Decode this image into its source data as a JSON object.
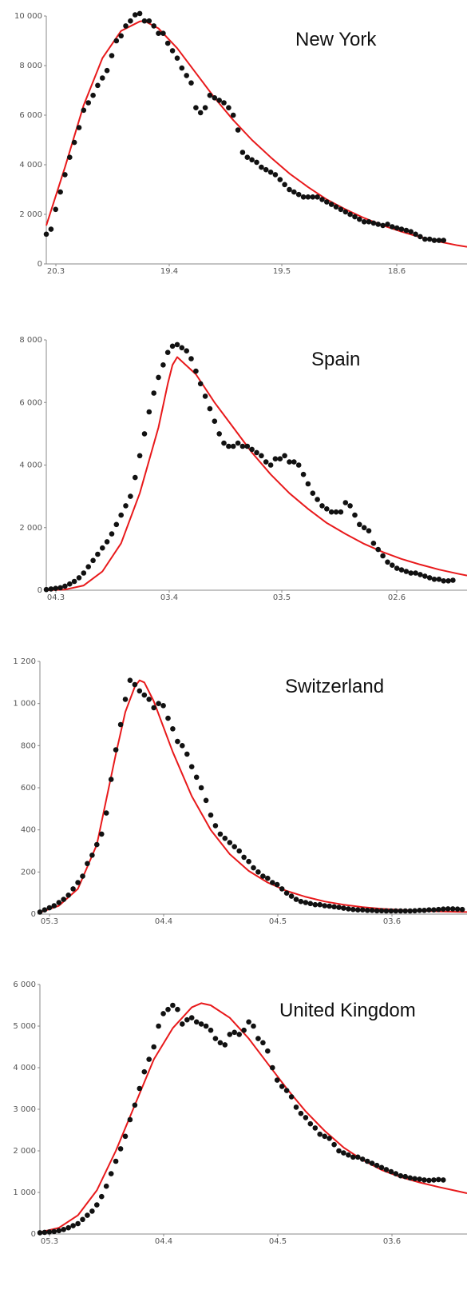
{
  "colors": {
    "fit": "#e8191b",
    "points": "#111111",
    "axis": "#888888",
    "background": "#ffffff"
  },
  "chart_data": [
    {
      "type": "scatter",
      "title": "New York",
      "xlabel": "",
      "ylabel": "",
      "xticks": [
        "20.3",
        "19.4",
        "19.5",
        "18.6"
      ],
      "xlim": [
        0,
        90
      ],
      "ylim": [
        0,
        10000
      ],
      "yticks": [
        0,
        2000,
        4000,
        6000,
        8000,
        10000
      ],
      "ytick_labels": [
        "0",
        "2 000",
        "4 000",
        "6 000",
        "8 000",
        "10 000"
      ],
      "grid": false,
      "series": [
        {
          "kind": "points",
          "x": [
            0,
            1,
            2,
            3,
            4,
            5,
            6,
            7,
            8,
            9,
            10,
            11,
            12,
            13,
            14,
            15,
            16,
            17,
            18,
            19,
            20,
            21,
            22,
            23,
            24,
            25,
            26,
            27,
            28,
            29,
            30,
            31,
            32,
            33,
            34,
            35,
            36,
            37,
            38,
            39,
            40,
            41,
            42,
            43,
            44,
            45,
            46,
            47,
            48,
            49,
            50,
            51,
            52,
            53,
            54,
            55,
            56,
            57,
            58,
            59,
            60,
            61,
            62,
            63,
            64,
            65,
            66,
            67,
            68,
            69,
            70,
            71,
            72,
            73,
            74,
            75,
            76,
            77,
            78,
            79,
            80,
            81,
            82,
            83,
            84,
            85
          ],
          "y": [
            1200,
            1400,
            2200,
            2900,
            3600,
            4300,
            4900,
            5500,
            6200,
            6500,
            6800,
            7200,
            7500,
            7800,
            8400,
            9000,
            9200,
            9600,
            9800,
            10050,
            10100,
            9800,
            9800,
            9600,
            9300,
            9300,
            8900,
            8600,
            8300,
            7900,
            7600,
            7300,
            6300,
            6100,
            6300,
            6800,
            6700,
            6600,
            6500,
            6300,
            6000,
            5400,
            4500,
            4300,
            4200,
            4100,
            3900,
            3800,
            3700,
            3600,
            3400,
            3200,
            3000,
            2900,
            2800,
            2700,
            2700,
            2700,
            2700,
            2600,
            2500,
            2400,
            2300,
            2200,
            2100,
            2000,
            1900,
            1800,
            1700,
            1700,
            1650,
            1600,
            1550,
            1600,
            1500,
            1450,
            1400,
            1350,
            1300,
            1200,
            1100,
            1000,
            1000,
            950,
            950,
            950
          ]
        },
        {
          "kind": "fit",
          "x": [
            0,
            4,
            8,
            12,
            16,
            20,
            21,
            24,
            28,
            32,
            36,
            40,
            44,
            48,
            52,
            56,
            60,
            64,
            68,
            72,
            76,
            80,
            84,
            88,
            90
          ],
          "y": [
            1550,
            3900,
            6400,
            8300,
            9400,
            9780,
            9800,
            9500,
            8700,
            7700,
            6700,
            5800,
            5000,
            4300,
            3650,
            3100,
            2600,
            2200,
            1850,
            1550,
            1300,
            1080,
            900,
            750,
            690
          ]
        }
      ]
    },
    {
      "type": "scatter",
      "title": "Spain",
      "xlabel": "",
      "ylabel": "",
      "xticks": [
        "04.3",
        "03.4",
        "03.5",
        "02.6"
      ],
      "xlim": [
        0,
        90
      ],
      "ylim": [
        0,
        8000
      ],
      "yticks": [
        0,
        2000,
        4000,
        6000,
        8000
      ],
      "ytick_labels": [
        "0",
        "2 000",
        "4 000",
        "6 000",
        "8 000"
      ],
      "grid": false,
      "series": [
        {
          "kind": "points",
          "x": [
            0,
            1,
            2,
            3,
            4,
            5,
            6,
            7,
            8,
            9,
            10,
            11,
            12,
            13,
            14,
            15,
            16,
            17,
            18,
            19,
            20,
            21,
            22,
            23,
            24,
            25,
            26,
            27,
            28,
            29,
            30,
            31,
            32,
            33,
            34,
            35,
            36,
            37,
            38,
            39,
            40,
            41,
            42,
            43,
            44,
            45,
            46,
            47,
            48,
            49,
            50,
            51,
            52,
            53,
            54,
            55,
            56,
            57,
            58,
            59,
            60,
            61,
            62,
            63,
            64,
            65,
            66,
            67,
            68,
            69,
            70,
            71,
            72,
            73,
            74,
            75,
            76,
            77,
            78,
            79,
            80,
            81,
            82,
            83,
            84,
            85,
            86,
            87
          ],
          "y": [
            20,
            40,
            60,
            80,
            130,
            200,
            280,
            400,
            550,
            750,
            950,
            1150,
            1350,
            1550,
            1800,
            2100,
            2400,
            2700,
            3000,
            3600,
            4300,
            5000,
            5700,
            6300,
            6800,
            7200,
            7600,
            7800,
            7850,
            7750,
            7650,
            7400,
            7000,
            6600,
            6200,
            5800,
            5400,
            5000,
            4700,
            4600,
            4600,
            4700,
            4600,
            4600,
            4500,
            4400,
            4300,
            4100,
            4000,
            4200,
            4200,
            4300,
            4100,
            4100,
            4000,
            3700,
            3400,
            3100,
            2900,
            2700,
            2600,
            2500,
            2500,
            2500,
            2800,
            2700,
            2400,
            2100,
            2000,
            1900,
            1500,
            1300,
            1100,
            900,
            800,
            700,
            650,
            600,
            550,
            550,
            500,
            450,
            400,
            350,
            350,
            300,
            300,
            320
          ]
        },
        {
          "kind": "fit",
          "x": [
            0,
            4,
            8,
            12,
            16,
            20,
            24,
            26,
            27,
            28,
            32,
            36,
            40,
            44,
            48,
            52,
            56,
            60,
            64,
            68,
            72,
            76,
            80,
            84,
            88,
            90
          ],
          "y": [
            0,
            20,
            150,
            600,
            1500,
            3100,
            5200,
            6600,
            7200,
            7450,
            6900,
            6000,
            5200,
            4400,
            3700,
            3100,
            2600,
            2150,
            1800,
            1480,
            1220,
            1000,
            820,
            660,
            530,
            470
          ]
        }
      ]
    },
    {
      "type": "scatter",
      "title": "Switzerland",
      "xlabel": "",
      "ylabel": "",
      "xticks": [
        "05.3",
        "04.4",
        "04.5",
        "03.6"
      ],
      "xlim": [
        0,
        90
      ],
      "ylim": [
        0,
        1200
      ],
      "yticks": [
        0,
        200,
        400,
        600,
        800,
        1000,
        1200
      ],
      "ytick_labels": [
        "0",
        "200",
        "400",
        "600",
        "800",
        "1 000",
        "1 200"
      ],
      "grid": false,
      "series": [
        {
          "kind": "points",
          "x": [
            0,
            1,
            2,
            3,
            4,
            5,
            6,
            7,
            8,
            9,
            10,
            11,
            12,
            13,
            14,
            15,
            16,
            17,
            18,
            19,
            20,
            21,
            22,
            23,
            24,
            25,
            26,
            27,
            28,
            29,
            30,
            31,
            32,
            33,
            34,
            35,
            36,
            37,
            38,
            39,
            40,
            41,
            42,
            43,
            44,
            45,
            46,
            47,
            48,
            49,
            50,
            51,
            52,
            53,
            54,
            55,
            56,
            57,
            58,
            59,
            60,
            61,
            62,
            63,
            64,
            65,
            66,
            67,
            68,
            69,
            70,
            71,
            72,
            73,
            74,
            75,
            76,
            77,
            78,
            79,
            80,
            81,
            82,
            83,
            84,
            85,
            86,
            87,
            88,
            89
          ],
          "y": [
            10,
            20,
            30,
            40,
            55,
            70,
            90,
            120,
            150,
            180,
            240,
            280,
            330,
            380,
            480,
            640,
            780,
            900,
            1020,
            1110,
            1090,
            1060,
            1040,
            1020,
            980,
            1000,
            990,
            930,
            880,
            820,
            800,
            760,
            700,
            650,
            600,
            540,
            470,
            420,
            380,
            360,
            340,
            320,
            300,
            270,
            250,
            220,
            200,
            180,
            170,
            150,
            140,
            120,
            100,
            85,
            70,
            60,
            55,
            50,
            45,
            45,
            40,
            38,
            35,
            32,
            28,
            25,
            22,
            20,
            20,
            18,
            18,
            16,
            16,
            15,
            15,
            15,
            15,
            15,
            15,
            16,
            18,
            18,
            20,
            20,
            22,
            24,
            25,
            25,
            24,
            22
          ]
        },
        {
          "kind": "fit",
          "x": [
            0,
            4,
            8,
            12,
            16,
            18,
            20,
            21,
            22,
            24,
            28,
            32,
            36,
            40,
            44,
            48,
            52,
            56,
            60,
            64,
            68,
            72,
            76,
            80,
            84,
            88,
            90
          ],
          "y": [
            8,
            40,
            120,
            330,
            760,
            960,
            1080,
            1110,
            1100,
            1010,
            770,
            560,
            400,
            285,
            205,
            150,
            110,
            82,
            60,
            45,
            33,
            25,
            20,
            16,
            13,
            11,
            10
          ]
        }
      ]
    },
    {
      "type": "scatter",
      "title": "United Kingdom",
      "xlabel": "",
      "ylabel": "",
      "xticks": [
        "05.3",
        "04.4",
        "04.5",
        "03.6"
      ],
      "xlim": [
        0,
        90
      ],
      "ylim": [
        0,
        6000
      ],
      "yticks": [
        0,
        1000,
        2000,
        3000,
        4000,
        5000,
        6000
      ],
      "ytick_labels": [
        "0",
        "1 000",
        "2 000",
        "3 000",
        "4 000",
        "5 000",
        "6 000"
      ],
      "grid": false,
      "series": [
        {
          "kind": "points",
          "x": [
            0,
            1,
            2,
            3,
            4,
            5,
            6,
            7,
            8,
            9,
            10,
            11,
            12,
            13,
            14,
            15,
            16,
            17,
            18,
            19,
            20,
            21,
            22,
            23,
            24,
            25,
            26,
            27,
            28,
            29,
            30,
            31,
            32,
            33,
            34,
            35,
            36,
            37,
            38,
            39,
            40,
            41,
            42,
            43,
            44,
            45,
            46,
            47,
            48,
            49,
            50,
            51,
            52,
            53,
            54,
            55,
            56,
            57,
            58,
            59,
            60,
            61,
            62,
            63,
            64,
            65,
            66,
            67,
            68,
            69,
            70,
            71,
            72,
            73,
            74,
            75,
            76,
            77,
            78,
            79,
            80,
            81,
            82,
            83,
            84,
            85
          ],
          "y": [
            30,
            40,
            50,
            60,
            80,
            110,
            150,
            200,
            250,
            350,
            450,
            550,
            700,
            900,
            1150,
            1450,
            1750,
            2050,
            2350,
            2750,
            3100,
            3500,
            3900,
            4200,
            4500,
            5000,
            5300,
            5400,
            5500,
            5400,
            5050,
            5150,
            5200,
            5100,
            5050,
            5000,
            4900,
            4700,
            4600,
            4550,
            4800,
            4850,
            4800,
            4900,
            5100,
            5000,
            4700,
            4600,
            4400,
            4000,
            3700,
            3550,
            3450,
            3300,
            3050,
            2900,
            2800,
            2650,
            2550,
            2400,
            2350,
            2300,
            2150,
            2000,
            1950,
            1900,
            1850,
            1850,
            1800,
            1750,
            1700,
            1650,
            1600,
            1550,
            1500,
            1450,
            1400,
            1380,
            1350,
            1330,
            1320,
            1300,
            1290,
            1300,
            1310,
            1300
          ]
        },
        {
          "kind": "fit",
          "x": [
            0,
            4,
            8,
            12,
            16,
            20,
            24,
            28,
            32,
            34,
            36,
            40,
            44,
            48,
            52,
            56,
            60,
            64,
            68,
            72,
            76,
            80,
            84,
            88,
            90
          ],
          "y": [
            40,
            150,
            450,
            1050,
            2000,
            3100,
            4200,
            4950,
            5450,
            5550,
            5500,
            5200,
            4700,
            4100,
            3500,
            2950,
            2480,
            2080,
            1780,
            1540,
            1370,
            1240,
            1130,
            1030,
            980
          ]
        }
      ]
    }
  ]
}
